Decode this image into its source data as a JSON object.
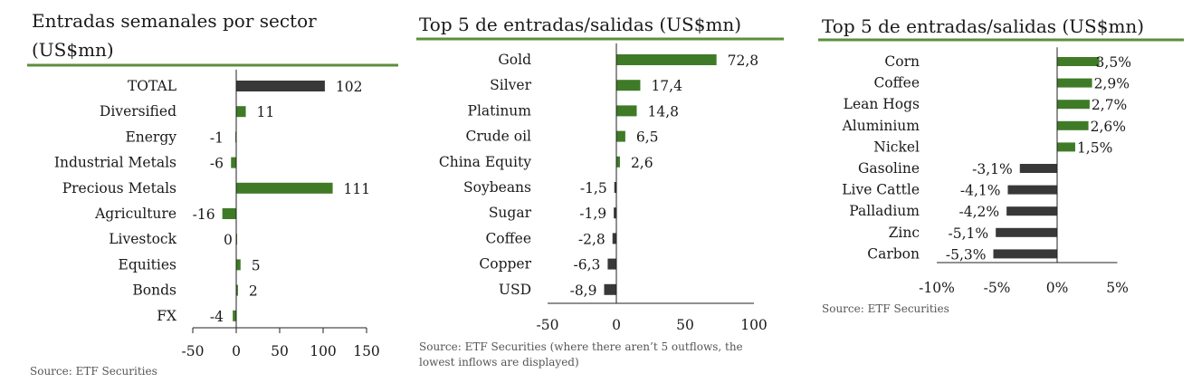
{
  "colors": {
    "positive": "#3f7b27",
    "total_or_negative": "#383838",
    "rule": "#5b8f3b",
    "axis": "#222222"
  },
  "chart_data": [
    {
      "type": "bar",
      "orientation": "horizontal",
      "title_lines": [
        "Entradas semanales por sector",
        "(US$mn)"
      ],
      "categories": [
        "TOTAL",
        "Diversified",
        "Energy",
        "Industrial Metals",
        "Precious Metals",
        "Agriculture",
        "Livestock",
        "Equities",
        "Bonds",
        "FX"
      ],
      "values": [
        102,
        11,
        -1,
        -6,
        111,
        -16,
        0,
        5,
        2,
        -4
      ],
      "value_labels": [
        "102",
        "11",
        "-1",
        "-6",
        "111",
        "-16",
        "0",
        "5",
        "2",
        "-4"
      ],
      "bar_colors": [
        "#383838",
        "#3f7b27",
        "#3f7b27",
        "#3f7b27",
        "#3f7b27",
        "#3f7b27",
        "#3f7b27",
        "#3f7b27",
        "#3f7b27",
        "#3f7b27"
      ],
      "xlim": [
        -50,
        150
      ],
      "xticks": [
        -50,
        0,
        50,
        100,
        150
      ],
      "xtick_labels": [
        "-50",
        "0",
        "50",
        "100",
        "150"
      ],
      "source": "Source: ETF Securities"
    },
    {
      "type": "bar",
      "orientation": "horizontal",
      "title_lines": [
        "Top 5 de entradas/salidas (US$mn)"
      ],
      "categories": [
        "Gold",
        "Silver",
        "Platinum",
        "Crude oil",
        "China Equity",
        "Soybeans",
        "Sugar",
        "Coffee",
        "Copper",
        "USD"
      ],
      "values": [
        72.8,
        17.4,
        14.8,
        6.5,
        2.6,
        -1.5,
        -1.9,
        -2.8,
        -6.3,
        -8.9
      ],
      "value_labels": [
        "72,8",
        "17,4",
        "14,8",
        "6,5",
        "2,6",
        "-1,5",
        "-1,9",
        "-2,8",
        "-6,3",
        "-8,9"
      ],
      "xlim": [
        -50,
        100
      ],
      "xticks": [
        -50,
        0,
        50,
        100
      ],
      "xtick_labels": [
        "-50",
        "0",
        "50",
        "100"
      ],
      "source_lines": [
        "Source: ETF Securities (where there aren’t 5 outflows, the",
        "lowest inflows are displayed)"
      ]
    },
    {
      "type": "bar",
      "orientation": "horizontal",
      "title_lines": [
        "Top 5 de entradas/salidas (US$mn)"
      ],
      "categories": [
        "Corn",
        "Coffee",
        "Lean Hogs",
        "Aluminium",
        "Nickel",
        "Gasoline",
        "Live Cattle",
        "Palladium",
        "Zinc",
        "Carbon"
      ],
      "values": [
        3.5,
        2.9,
        2.7,
        2.6,
        1.5,
        -3.1,
        -4.1,
        -4.2,
        -5.1,
        -5.3
      ],
      "value_labels": [
        "3,5%",
        "2,9%",
        "2,7%",
        "2,6%",
        "1,5%",
        "-3,1%",
        "-4,1%",
        "-4,2%",
        "-5,1%",
        "-5,3%"
      ],
      "unit": "%",
      "xlim": [
        -10,
        5
      ],
      "xticks": [
        -10,
        -5,
        0,
        5
      ],
      "xtick_labels": [
        "-10%",
        "-5%",
        "0%",
        "5%"
      ],
      "source": "Source: ETF Securities"
    }
  ]
}
